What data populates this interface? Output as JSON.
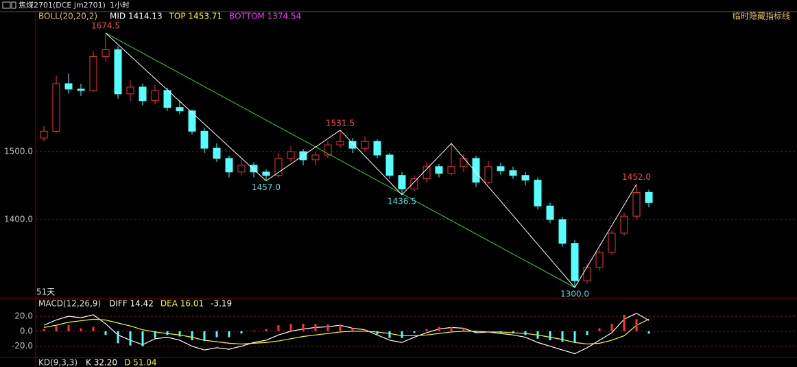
{
  "header": {
    "title": "焦煤2701(DCE jm2701)",
    "period": "1小时"
  },
  "hide_label": "临时隐藏指标线",
  "chart_data": [
    {
      "type": "candlestick",
      "indicator": "BOLL(20,20,2)",
      "legend": [
        {
          "text": "MID 1414.13",
          "color": "#ffffff"
        },
        {
          "text": "TOP 1453.71",
          "color": "#ffff00"
        },
        {
          "text": "BOTTOM 1374.54",
          "color": "#ff33ff"
        }
      ],
      "span_label": "51天",
      "ylim": [
        1287,
        1706
      ],
      "yticks": [
        {
          "value": 1400,
          "label": "1400.0"
        },
        {
          "value": 1500,
          "label": "1500.0"
        }
      ],
      "up_color": "#ff3232",
      "down_color": "#54ffff",
      "open": [
        1520,
        1530,
        1600,
        1592,
        1590,
        1640,
        1650,
        1585,
        1595,
        1575,
        1590,
        1565,
        1560,
        1530,
        1505,
        1490,
        1470,
        1480,
        1470,
        1465,
        1490,
        1500,
        1488,
        1495,
        1510,
        1515,
        1505,
        1515,
        1495,
        1465,
        1445,
        1460,
        1478,
        1468,
        1478,
        1490,
        1455,
        1478,
        1472,
        1465,
        1458,
        1420,
        1400,
        1365,
        1310,
        1330,
        1352,
        1380,
        1405,
        1440
      ],
      "high": [
        1538,
        1612,
        1615,
        1600,
        1648,
        1674.5,
        1655,
        1605,
        1600,
        1598,
        1594,
        1575,
        1562,
        1535,
        1512,
        1494,
        1488,
        1484,
        1474,
        1498,
        1508,
        1504,
        1500,
        1516,
        1531.5,
        1520,
        1522,
        1518,
        1498,
        1470,
        1465,
        1485,
        1482,
        1512,
        1496,
        1494,
        1486,
        1484,
        1478,
        1470,
        1462,
        1425,
        1404,
        1370,
        1335,
        1356,
        1384,
        1410,
        1452,
        1444
      ],
      "low": [
        1515,
        1528,
        1585,
        1582,
        1588,
        1632,
        1578,
        1575,
        1568,
        1570,
        1560,
        1555,
        1525,
        1498,
        1485,
        1462,
        1466,
        1462,
        1457,
        1462,
        1485,
        1480,
        1480,
        1490,
        1505,
        1498,
        1500,
        1490,
        1460,
        1436.5,
        1442,
        1455,
        1462,
        1465,
        1470,
        1448,
        1452,
        1466,
        1460,
        1450,
        1415,
        1395,
        1360,
        1300,
        1306,
        1325,
        1348,
        1376,
        1400,
        1418
      ],
      "close": [
        1530,
        1600,
        1592,
        1590,
        1640,
        1650,
        1585,
        1595,
        1575,
        1590,
        1565,
        1560,
        1530,
        1505,
        1490,
        1470,
        1480,
        1470,
        1465,
        1490,
        1500,
        1488,
        1495,
        1510,
        1515,
        1505,
        1515,
        1495,
        1465,
        1445,
        1460,
        1478,
        1468,
        1478,
        1490,
        1455,
        1478,
        1472,
        1465,
        1458,
        1420,
        1400,
        1365,
        1310,
        1330,
        1352,
        1380,
        1405,
        1440,
        1425
      ],
      "trendline": {
        "x": [
          5,
          43
        ],
        "values": [
          1674.5,
          1300
        ],
        "color": "#3cd23c"
      },
      "zigzag": {
        "x": [
          5,
          18,
          24,
          29,
          33,
          43,
          48
        ],
        "values": [
          1674.5,
          1457,
          1531.5,
          1436.5,
          1512,
          1300,
          1452
        ],
        "value_labels": [
          "1674.5",
          "1457.0",
          "1531.5",
          "1436.5",
          null,
          "1300.0",
          "1452.0"
        ],
        "color": "#ffffff"
      }
    },
    {
      "type": "macd",
      "title": "MACD(12,26,9)",
      "legend": [
        {
          "text": "DIFF 14.42",
          "color": "#ffffff"
        },
        {
          "text": "DEA 16.01",
          "color": "#ffff00"
        },
        {
          "text": "-3.19",
          "color": "#ffffff"
        }
      ],
      "ylim": [
        -34,
        42
      ],
      "yticks": [
        {
          "value": 20,
          "label": "20.0"
        },
        {
          "value": 0,
          "label": "0.0"
        },
        {
          "value": -20,
          "label": "-20.0"
        }
      ],
      "series": [
        {
          "name": "DIFF",
          "color": "#ffffff",
          "values": [
            8,
            15,
            20,
            18,
            22,
            10,
            -5,
            -12,
            -18,
            -10,
            -8,
            -12,
            -20,
            -25,
            -22,
            -24,
            -20,
            -15,
            -12,
            -5,
            0,
            3,
            5,
            6,
            8,
            4,
            2,
            -5,
            -12,
            -15,
            -8,
            -2,
            3,
            5,
            4,
            -2,
            -1,
            -3,
            -5,
            -8,
            -15,
            -20,
            -25,
            -30,
            -22,
            -12,
            -2,
            16,
            24,
            14.42
          ]
        },
        {
          "name": "DEA",
          "color": "#ffff00",
          "values": [
            5,
            8,
            12,
            14,
            16,
            15,
            11,
            7,
            2,
            -1,
            -3,
            -5,
            -8,
            -12,
            -14,
            -16,
            -17,
            -16,
            -15,
            -13,
            -10,
            -7,
            -5,
            -3,
            -1,
            0,
            0,
            -1,
            -3,
            -6,
            -6,
            -5,
            -3,
            -1,
            0,
            0,
            -1,
            -1,
            -2,
            -3,
            -5,
            -8,
            -11,
            -15,
            -17,
            -16,
            -12,
            -6,
            8,
            16.01
          ]
        },
        {
          "name": "MACD",
          "up_color": "#ff3232",
          "down_color": "#54ffff",
          "values": [
            3,
            7,
            8,
            4,
            6,
            -5,
            -16,
            -19,
            -20,
            -9,
            -5,
            -7,
            -12,
            -13,
            -8,
            -8,
            -3,
            1,
            3,
            8,
            10,
            10,
            10,
            9,
            9,
            4,
            2,
            -4,
            -9,
            -9,
            -2,
            3,
            6,
            6,
            4,
            -2,
            0,
            -2,
            -3,
            -5,
            -10,
            -12,
            -14,
            -15,
            -5,
            4,
            10,
            22,
            16,
            -3.19
          ]
        }
      ]
    },
    {
      "type": "kd",
      "title": "KD(9,3,3)",
      "legend": [
        {
          "text": "K 32.20",
          "color": "#ffffff"
        },
        {
          "text": "D 51.04",
          "color": "#ffff00"
        }
      ]
    }
  ]
}
